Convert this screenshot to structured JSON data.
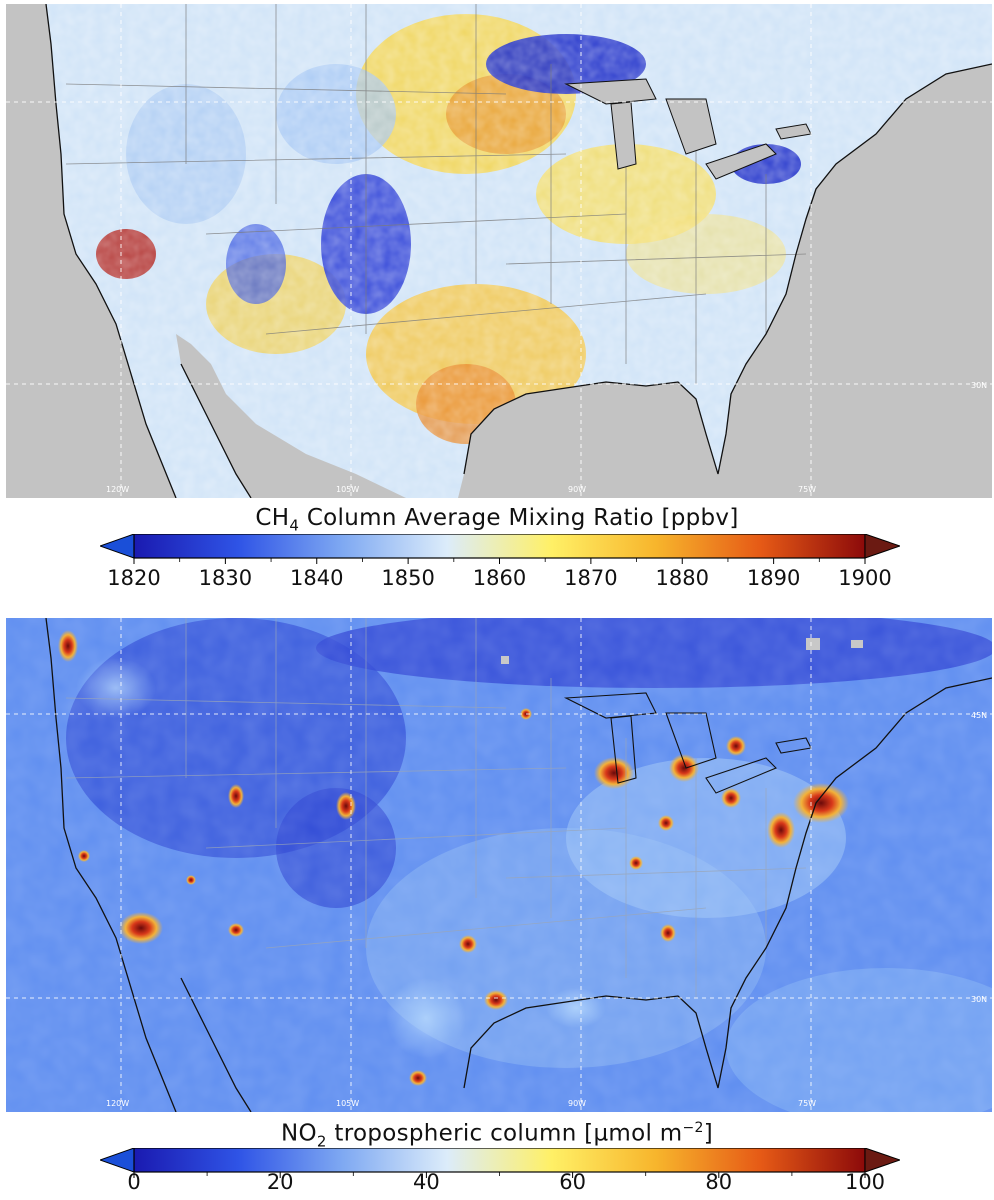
{
  "maps": {
    "ch4": {
      "gridlines": {
        "lon_labels": [
          "120W",
          "105W",
          "90W",
          "75W"
        ],
        "lat_labels": [
          "30N"
        ]
      },
      "colorbar": {
        "title_prefix": "CH",
        "title_sub": "4",
        "title_rest": " Column Average Mixing Ratio [ppbv]",
        "min": 1820,
        "max": 1900,
        "tick_labels": [
          "1820",
          "1830",
          "1840",
          "1850",
          "1860",
          "1870",
          "1880",
          "1890",
          "1900"
        ],
        "colors": [
          "#1a1ab0",
          "#2f54e6",
          "#7fa9f2",
          "#dcecfa",
          "#fff066",
          "#f7b52c",
          "#e65a16",
          "#8c0a0a"
        ],
        "extend": "both"
      }
    },
    "no2": {
      "gridlines": {
        "lon_labels": [
          "120W",
          "105W",
          "90W",
          "75W"
        ],
        "lat_labels": [
          "45N",
          "30N"
        ]
      },
      "colorbar": {
        "title_prefix": "NO",
        "title_sub": "2",
        "title_mid": " tropospheric column [µmol m",
        "title_sup": "−2",
        "title_end": "]",
        "min": 0,
        "max": 100,
        "tick_labels": [
          "0",
          "20",
          "40",
          "60",
          "80",
          "100"
        ],
        "colors": [
          "#1a1ab0",
          "#2f54e6",
          "#7fa9f2",
          "#dcecfa",
          "#fff066",
          "#f7b52c",
          "#e65a16",
          "#8c0a0a"
        ],
        "extend": "both"
      }
    }
  }
}
